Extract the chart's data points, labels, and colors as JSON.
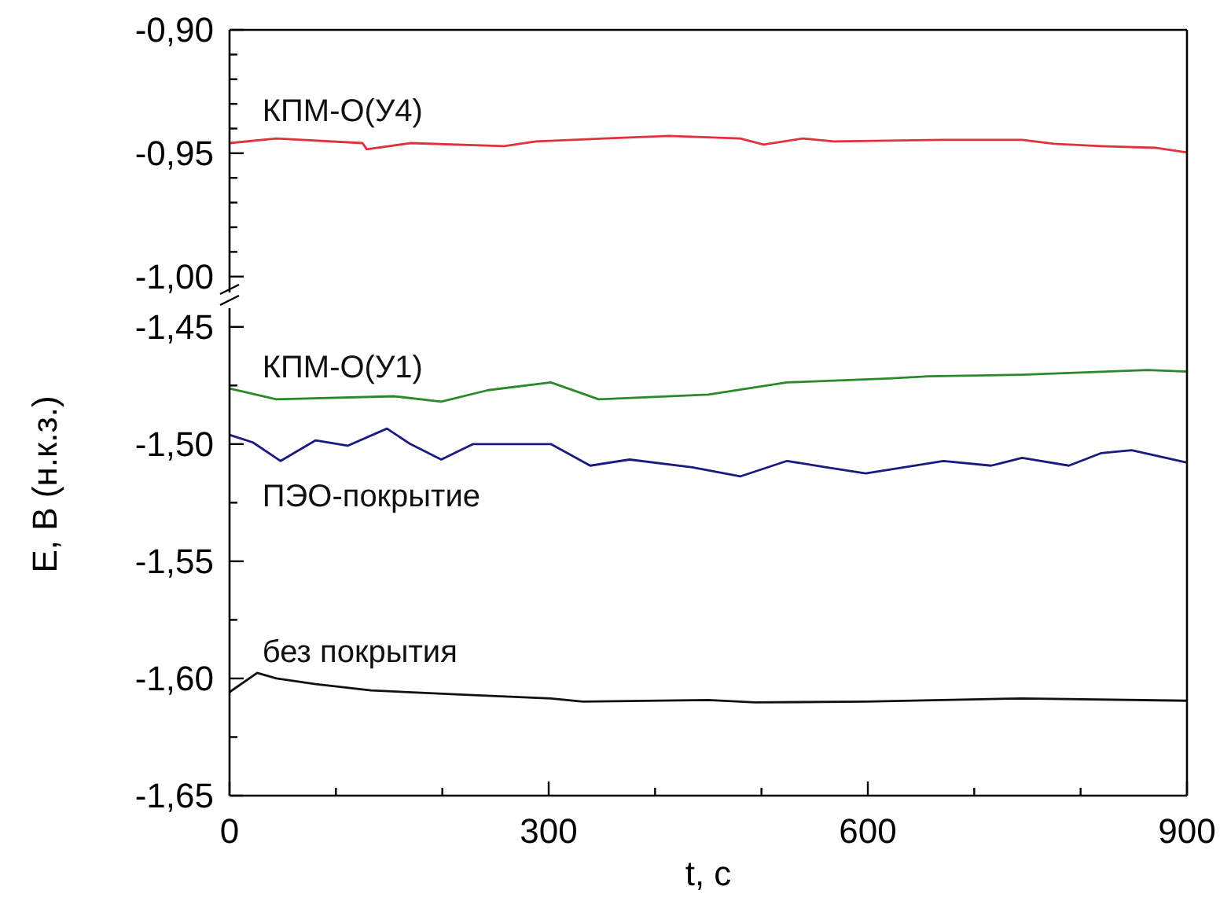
{
  "chart_data": [
    {
      "type": "line",
      "xlim": [
        0,
        900
      ],
      "ylim": [
        -1.009,
        -0.9
      ],
      "yticks": [
        {
          "value": -0.9,
          "label": "-0,90"
        },
        {
          "value": -0.91,
          "label": null
        },
        {
          "value": -0.92,
          "label": null
        },
        {
          "value": -0.93,
          "label": null
        },
        {
          "value": -0.94,
          "label": null
        },
        {
          "value": -0.95,
          "label": "-0,95"
        },
        {
          "value": -0.96,
          "label": null
        },
        {
          "value": -0.97,
          "label": null
        },
        {
          "value": -0.98,
          "label": null
        },
        {
          "value": -0.99,
          "label": null
        },
        {
          "value": -1.0,
          "label": "-1,00"
        }
      ],
      "tick_labels": "y",
      "grid": false,
      "line_style": "solid",
      "series": [
        {
          "name": "КПМ-О(У4)",
          "color": "#e0323c",
          "x": [
            0,
            44,
            125,
            129,
            170,
            258,
            288,
            376,
            413,
            480,
            502,
            539,
            568,
            671,
            745,
            775,
            819,
            870,
            900
          ],
          "values": [
            -0.9459,
            -0.944,
            -0.9459,
            -0.9484,
            -0.9459,
            -0.9471,
            -0.9452,
            -0.9436,
            -0.943,
            -0.944,
            -0.9465,
            -0.944,
            -0.9452,
            -0.9446,
            -0.9446,
            -0.9462,
            -0.9471,
            -0.9478,
            -0.9497
          ]
        }
      ]
    },
    {
      "type": "line",
      "xlabel": "t, c",
      "ylabel": "E, B (н.к.з.)",
      "xlim": [
        0,
        900
      ],
      "xticks": [
        0,
        {
          "value": 100,
          "label": null
        },
        {
          "value": 200,
          "label": null
        },
        300,
        {
          "value": 400,
          "label": null
        },
        {
          "value": 500,
          "label": null
        },
        600,
        {
          "value": 700,
          "label": null
        },
        {
          "value": 800,
          "label": null
        },
        900
      ],
      "ylim": [
        -1.65,
        -1.438
      ],
      "yticks": [
        {
          "value": -1.45,
          "label": "-1,45"
        },
        {
          "value": -1.475,
          "label": null
        },
        {
          "value": -1.5,
          "label": "-1,50"
        },
        {
          "value": -1.525,
          "label": null
        },
        {
          "value": -1.55,
          "label": "-1,55"
        },
        {
          "value": -1.575,
          "label": null
        },
        {
          "value": -1.6,
          "label": "-1,60"
        },
        {
          "value": -1.625,
          "label": null
        },
        {
          "value": -1.65,
          "label": "-1,65"
        }
      ],
      "grid": false,
      "line_style": "solid",
      "series": [
        {
          "name": "КПМ-О(У1)",
          "color": "#2a8a2a",
          "x": [
            0,
            44,
            155,
            199,
            243,
            302,
            347,
            450,
            524,
            620,
            657,
            745,
            863,
            900
          ],
          "values": [
            -1.4763,
            -1.4809,
            -1.4796,
            -1.4819,
            -1.477,
            -1.4737,
            -1.4809,
            -1.4789,
            -1.4737,
            -1.472,
            -1.4711,
            -1.4704,
            -1.4684,
            -1.4691
          ]
        },
        {
          "name": "ПЭО-покрытие",
          "color": "#1a1a80",
          "x": [
            0,
            22,
            48,
            81,
            111,
            148,
            170,
            199,
            229,
            302,
            339,
            376,
            435,
            480,
            524,
            561,
            598,
            634,
            671,
            716,
            745,
            789,
            819,
            848,
            900
          ],
          "values": [
            -1.4961,
            -1.4993,
            -1.5072,
            -1.4984,
            -1.5007,
            -1.4934,
            -1.5,
            -1.5066,
            -1.5,
            -1.5,
            -1.5092,
            -1.5066,
            -1.5099,
            -1.5138,
            -1.5072,
            -1.5099,
            -1.5125,
            -1.5099,
            -1.5072,
            -1.5092,
            -1.5059,
            -1.5092,
            -1.5039,
            -1.5026,
            -1.5079
          ]
        },
        {
          "name": "без покрытия",
          "color": "#111111",
          "x": [
            0,
            26,
            44,
            81,
            133,
            229,
            302,
            332,
            450,
            494,
            598,
            745,
            900
          ],
          "values": [
            -1.6058,
            -1.5976,
            -1.6,
            -1.6024,
            -1.6051,
            -1.6071,
            -1.6085,
            -1.6099,
            -1.6092,
            -1.6102,
            -1.6099,
            -1.6085,
            -1.6095
          ]
        }
      ]
    }
  ]
}
